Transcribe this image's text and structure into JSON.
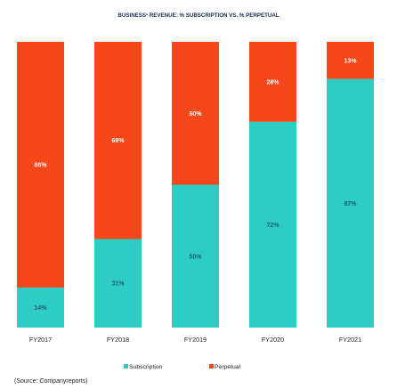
{
  "chart_data": {
    "type": "bar",
    "stacked": true,
    "percent": true,
    "title": "BUSINESS¹ REVENUE: % SUBSCRIPTION VS. % PERPETUAL",
    "categories": [
      "FY2017",
      "FY2018",
      "FY2019",
      "FY2020",
      "FY2021"
    ],
    "series": [
      {
        "name": "Subscription",
        "values": [
          14,
          31,
          50,
          72,
          87
        ],
        "value_labels": [
          "14%",
          "31%",
          "50%",
          "72%",
          "87%"
        ],
        "color": "#2ecdc4"
      },
      {
        "name": "Perpetual",
        "values": [
          86,
          69,
          50,
          28,
          13
        ],
        "value_labels": [
          "86%",
          "69%",
          "50%",
          "28%",
          "13%"
        ],
        "color": "#f6471a"
      }
    ],
    "ylim": [
      0,
      100
    ],
    "grid": false,
    "legend": "bottom-center"
  },
  "source": "(Source: Companyreports)"
}
